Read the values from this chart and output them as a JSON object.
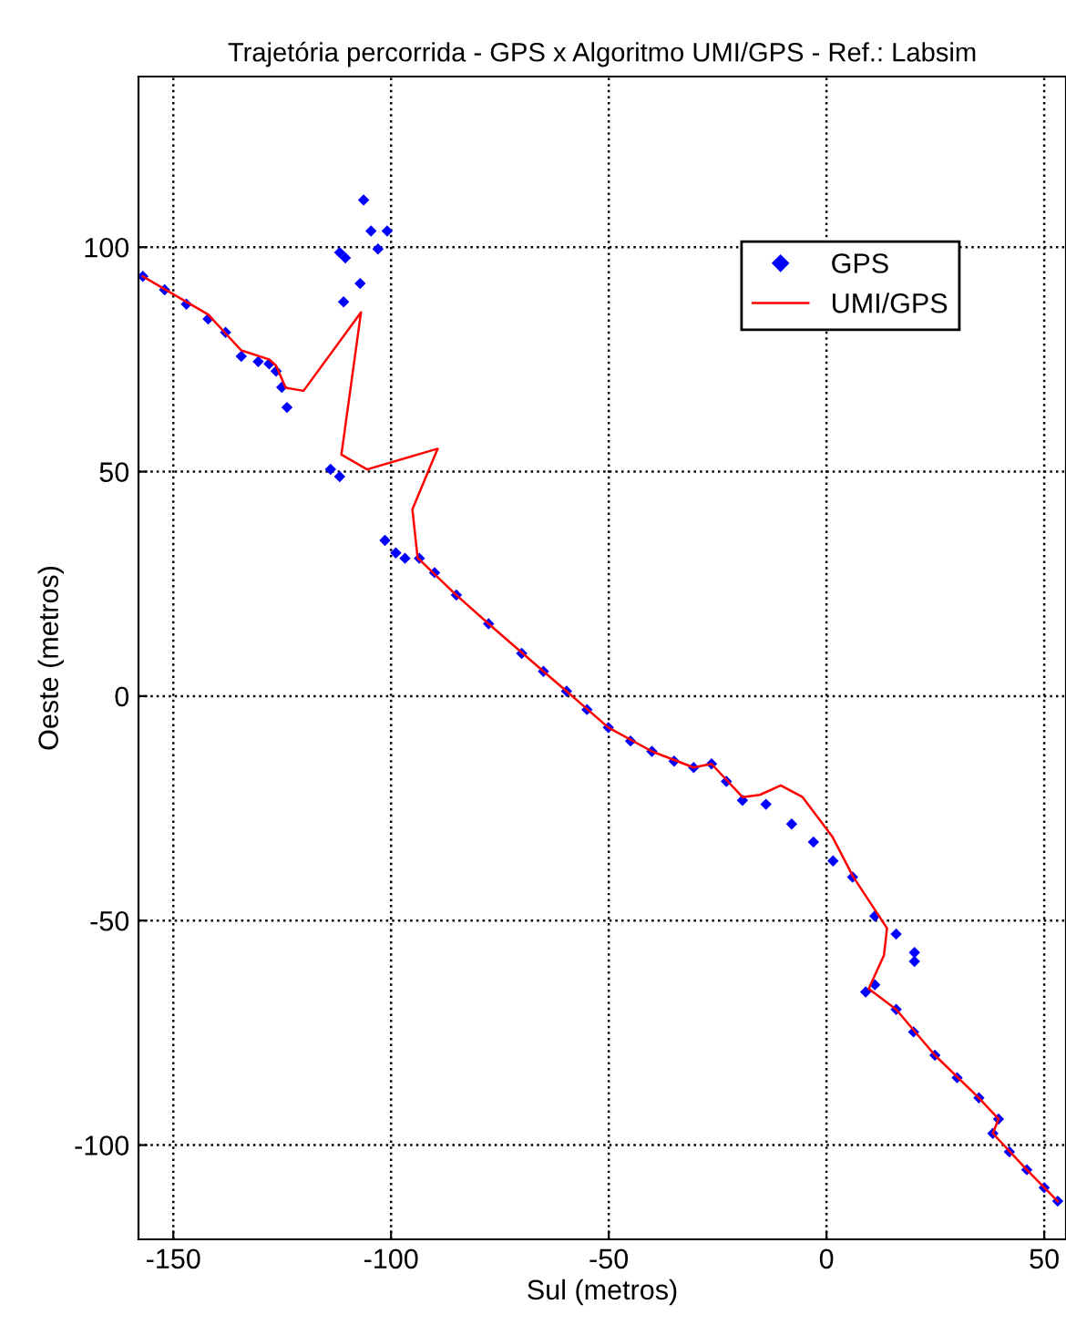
{
  "chart_data": {
    "type": "scatter",
    "title": "Trajetória percorrida - GPS x Algoritmo UMI/GPS - Ref.: Labsim",
    "xlabel": "Sul (metros)",
    "ylabel": "Oeste (metros)",
    "xlim": [
      -158,
      55
    ],
    "ylim": [
      -121,
      138
    ],
    "xticks": [
      -150,
      -100,
      -50,
      0,
      50
    ],
    "yticks": [
      -100,
      -50,
      0,
      50,
      100
    ],
    "grid": true,
    "legend": "top right",
    "series": [
      {
        "name": "GPS",
        "marker": "diamond",
        "color": "#0000ff",
        "x": [
          -157,
          -152,
          -147,
          -142,
          -138,
          -134.4,
          -130.5,
          -128,
          -126.4,
          -125.1,
          -123.9,
          -111.8,
          -110.5,
          -110.9,
          -107.1,
          -106.3,
          -104.6,
          -100.9,
          -103,
          -113.9,
          -111.8,
          -101.4,
          -98.9,
          -96.8,
          -93.5,
          -90,
          -85,
          -77.6,
          -70,
          -65,
          -59.7,
          -55,
          -50.1,
          -45,
          -40.1,
          -35,
          -30.5,
          -26.4,
          -23,
          -19.3,
          -13.9,
          -8,
          -3,
          1.5,
          6,
          11.1,
          16,
          20.2,
          20.2,
          9.0,
          11.1,
          16,
          20,
          24.9,
          30,
          35,
          39.5,
          38.2,
          42,
          46,
          50,
          53.1
        ],
        "values": [
          93.5,
          90.5,
          87.3,
          84,
          81,
          75.7,
          74.5,
          74,
          72.4,
          68.8,
          64.3,
          98.8,
          97.6,
          87.8,
          91.9,
          110.5,
          103.6,
          103.6,
          99.6,
          50.5,
          48.9,
          34.7,
          31.9,
          30.7,
          30.7,
          27.5,
          22.5,
          16.1,
          9.5,
          5.5,
          1.1,
          -3,
          -7,
          -10,
          -12.3,
          -14.5,
          -15.9,
          -15.1,
          -19,
          -23.2,
          -24.1,
          -28.5,
          -32.5,
          -36.7,
          -40.3,
          -49,
          -53,
          -57.1,
          -59.1,
          -65.9,
          -64.3,
          -69.8,
          -74.8,
          -80,
          -85,
          -89.5,
          -94.2,
          -97.4,
          -101.5,
          -105.5,
          -109.5,
          -112.5
        ]
      },
      {
        "name": "UMI/GPS",
        "type": "line",
        "line_style": "solid",
        "color": "#ff0000",
        "x": [
          -157,
          -150,
          -142,
          -134.4,
          -128,
          -126.4,
          -124.2,
          -120.1,
          -106.9,
          -111.4,
          -105.5,
          -89.3,
          -95.1,
          -93.9,
          -85,
          -77.6,
          -65,
          -59.7,
          -50.1,
          -40.1,
          -30.5,
          -26.4,
          -19.3,
          -15.3,
          -10.5,
          -5.5,
          1.4,
          6.1,
          13.9,
          13.2,
          9.7,
          16,
          24.9,
          35,
          39.5,
          38.2,
          46,
          53.1
        ],
        "values": [
          93.5,
          89.5,
          85,
          77,
          75,
          73.6,
          68.7,
          68.0,
          85.5,
          53.8,
          50.5,
          55.1,
          41.6,
          30.8,
          22.5,
          16.1,
          5.5,
          1.1,
          -7,
          -12.3,
          -15.9,
          -15.1,
          -22.5,
          -22.0,
          -19.9,
          -22.5,
          -31.4,
          -40.2,
          -51.7,
          -57.7,
          -65.2,
          -69.8,
          -80,
          -89.5,
          -94.2,
          -97.4,
          -105.5,
          -112.5
        ]
      }
    ]
  }
}
